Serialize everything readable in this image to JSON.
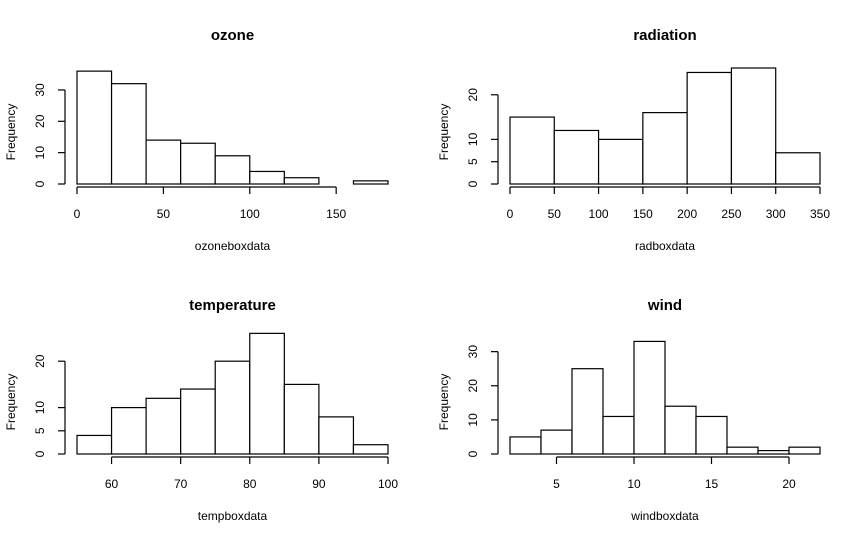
{
  "chart_data": [
    {
      "type": "histogram",
      "title": "ozone",
      "xlabel": "ozoneboxdata",
      "ylabel": "Frequency",
      "xlim": [
        0,
        180
      ],
      "ylim": [
        0,
        37
      ],
      "x_ticks": [
        0,
        50,
        100,
        150
      ],
      "y_ticks": [
        0,
        10,
        20,
        30
      ],
      "breaks": [
        0,
        20,
        40,
        60,
        80,
        100,
        120,
        140,
        160,
        180
      ],
      "counts": [
        36,
        32,
        14,
        13,
        9,
        4,
        2,
        0,
        1
      ]
    },
    {
      "type": "histogram",
      "title": "radiation",
      "xlabel": "radboxdata",
      "ylabel": "Frequency",
      "xlim": [
        0,
        350
      ],
      "ylim": [
        0,
        26
      ],
      "x_ticks": [
        0,
        50,
        100,
        150,
        200,
        250,
        300,
        350
      ],
      "y_ticks": [
        0,
        5,
        10,
        20
      ],
      "breaks": [
        0,
        50,
        100,
        150,
        200,
        250,
        300,
        350
      ],
      "counts": [
        15,
        12,
        10,
        16,
        25,
        26,
        7
      ]
    },
    {
      "type": "histogram",
      "title": "temperature",
      "xlabel": "tempboxdata",
      "ylabel": "Frequency",
      "xlim": [
        55,
        100
      ],
      "ylim": [
        0,
        25
      ],
      "x_ticks": [
        60,
        70,
        80,
        90,
        100
      ],
      "y_ticks": [
        0,
        5,
        10,
        20
      ],
      "breaks": [
        55,
        60,
        65,
        70,
        75,
        80,
        85,
        90,
        95,
        100
      ],
      "counts": [
        4,
        10,
        12,
        14,
        20,
        26,
        15,
        8,
        2
      ]
    },
    {
      "type": "histogram",
      "title": "wind",
      "xlabel": "windboxdata",
      "ylabel": "Frequency",
      "xlim": [
        2,
        22
      ],
      "ylim": [
        0,
        34
      ],
      "x_ticks": [
        5,
        10,
        15,
        20
      ],
      "y_ticks": [
        0,
        10,
        20,
        30
      ],
      "breaks": [
        2,
        4,
        6,
        8,
        10,
        12,
        14,
        16,
        18,
        20,
        22
      ],
      "counts": [
        5,
        7,
        25,
        11,
        33,
        14,
        11,
        2,
        1,
        2
      ]
    }
  ]
}
